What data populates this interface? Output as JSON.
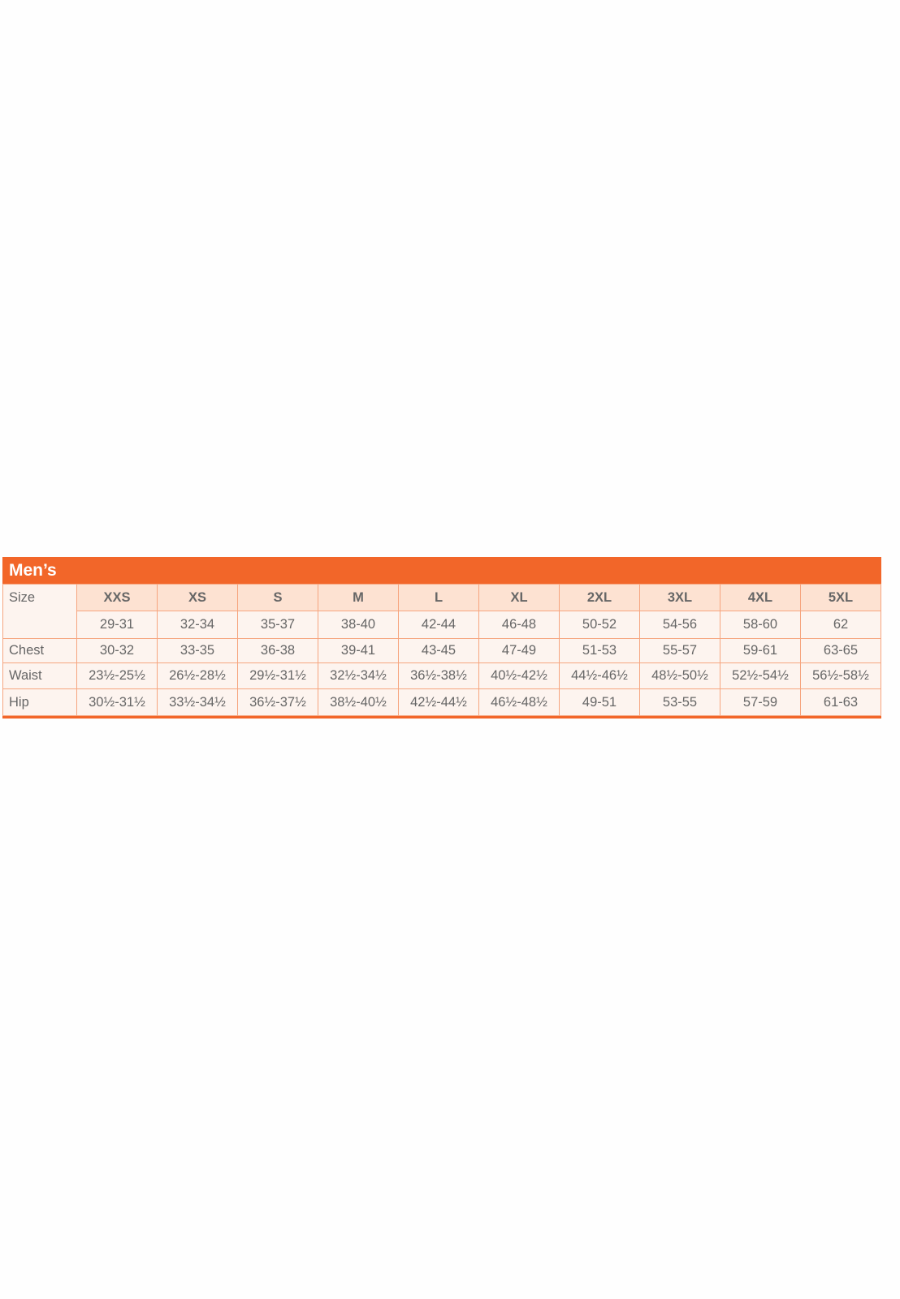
{
  "title": "Men’s",
  "colors": {
    "accent": "#f26629",
    "header_cell": "#fde2d2",
    "body_cell": "#fdf4ef",
    "text": "#666666"
  },
  "sizes": [
    "XXS",
    "XS",
    "S",
    "M",
    "L",
    "XL",
    "2XL",
    "3XL",
    "4XL",
    "5XL"
  ],
  "rows": [
    {
      "label": "Size",
      "values": [
        "29-31",
        "32-34",
        "35-37",
        "38-40",
        "42-44",
        "46-48",
        "50-52",
        "54-56",
        "58-60",
        "62"
      ]
    },
    {
      "label": "Chest",
      "values": [
        "30-32",
        "33-35",
        "36-38",
        "39-41",
        "43-45",
        "47-49",
        "51-53",
        "55-57",
        "59-61",
        "63-65"
      ]
    },
    {
      "label": "Waist",
      "values": [
        "23½-25½",
        "26½-28½",
        "29½-31½",
        "32½-34½",
        "36½-38½",
        "40½-42½",
        "44½-46½",
        "48½-50½",
        "52½-54½",
        "56½-58½"
      ]
    },
    {
      "label": "Hip",
      "values": [
        "30½-31½",
        "33½-34½",
        "36½-37½",
        "38½-40½",
        "42½-44½",
        "46½-48½",
        "49-51",
        "53-55",
        "57-59",
        "61-63"
      ]
    }
  ]
}
